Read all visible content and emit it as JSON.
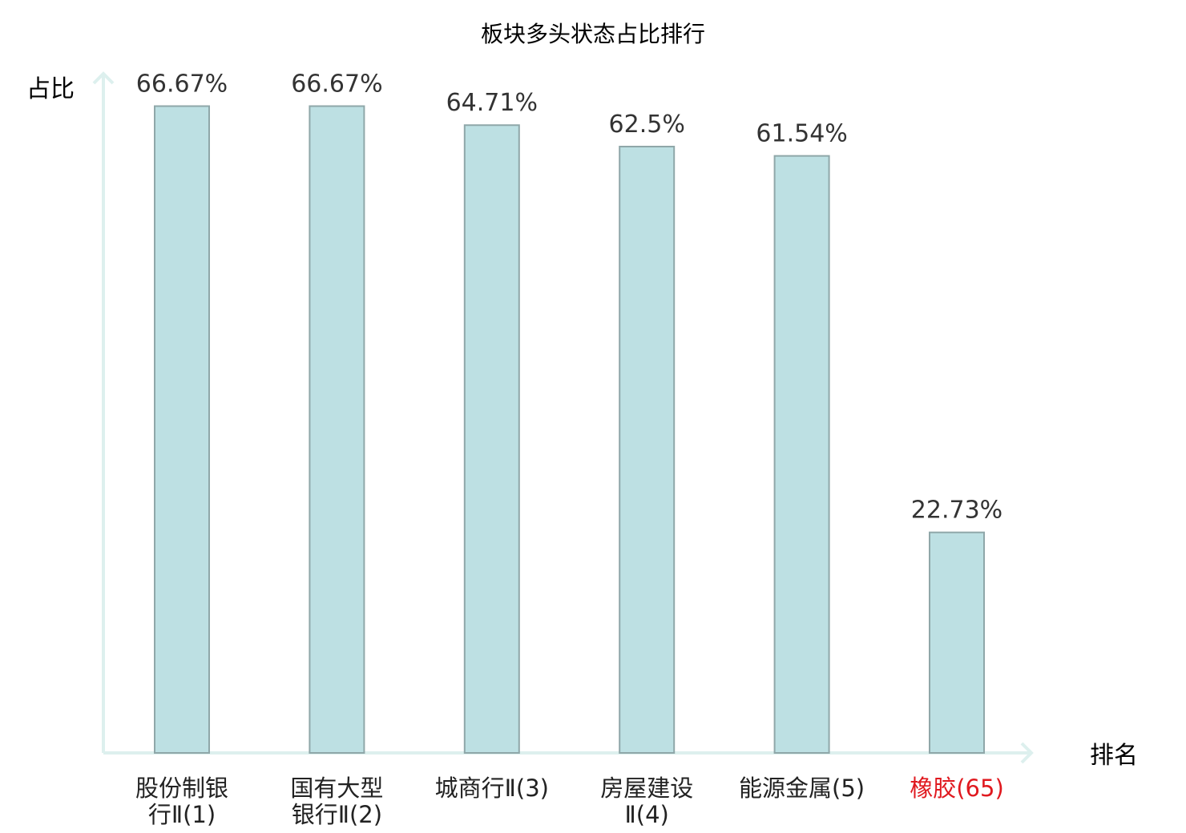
{
  "chart_data": {
    "type": "bar",
    "title": "板块多头状态占比排行",
    "ylabel": "占比",
    "xlabel": "排名",
    "ylim": [
      0,
      71.5
    ],
    "grid": false,
    "categories": [
      [
        "股份制银",
        "行Ⅱ(1)"
      ],
      [
        "国有大型",
        "银行Ⅱ(2)"
      ],
      [
        "城商行Ⅱ(3)"
      ],
      [
        "房屋建设",
        "Ⅱ(4)"
      ],
      [
        "能源金属(5)"
      ],
      [
        "橡胶(65)"
      ]
    ],
    "values": [
      66.67,
      66.67,
      64.71,
      62.5,
      61.54,
      22.73
    ],
    "value_labels": [
      "66.67%",
      "66.67%",
      "64.71%",
      "62.5%",
      "61.54%",
      "22.73%"
    ],
    "highlight_index": 5
  },
  "colors": {
    "bar_fill": "#bde0e3",
    "bar_stroke": "#8fa7a9",
    "axis": "#ddf0ee",
    "highlight": "#e0191f"
  }
}
